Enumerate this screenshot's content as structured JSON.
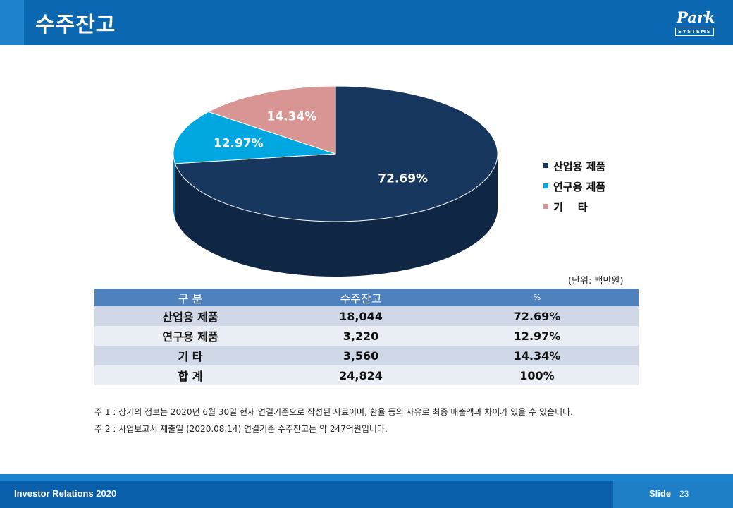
{
  "header": {
    "title": "수주잔고"
  },
  "logo": {
    "script": "Park",
    "box": "SYSTEMS"
  },
  "chart_data": {
    "type": "pie",
    "categories": [
      "산업용 제품",
      "연구용 제품",
      "기    타"
    ],
    "values": [
      72.69,
      12.97,
      14.34
    ],
    "data_labels": [
      "72.69%",
      "12.97%",
      "14.34%"
    ],
    "colors": [
      "#17375e",
      "#00a7e1",
      "#d99594"
    ],
    "side_colors": [
      "#0f2744",
      "#0088b8",
      "#b07574"
    ],
    "legend_position": "right"
  },
  "unit_note": "(단위: 백만원)",
  "table": {
    "headers": [
      "구  분",
      "수주잔고",
      "%"
    ],
    "rows": [
      [
        "산업용 제품",
        "18,044",
        "72.69%"
      ],
      [
        "연구용 제품",
        "3,220",
        "12.97%"
      ],
      [
        "기    타",
        "3,560",
        "14.34%"
      ],
      [
        "합    계",
        "24,824",
        "100%"
      ]
    ]
  },
  "notes": [
    "주 1 : 상기의 정보는 2020년 6월 30일 현재 연결기준으로 작성된 자료이며, 환율 등의 사유로 최종 매출액과 차이가 있을 수 있습니다.",
    "주 2 : 사업보고서 제출일 (2020.08.14) 연결기준 수주잔고는 약 247억원입니다."
  ],
  "footer": {
    "left": "Investor Relations 2020",
    "slide_label": "Slide",
    "slide_number": "23"
  }
}
